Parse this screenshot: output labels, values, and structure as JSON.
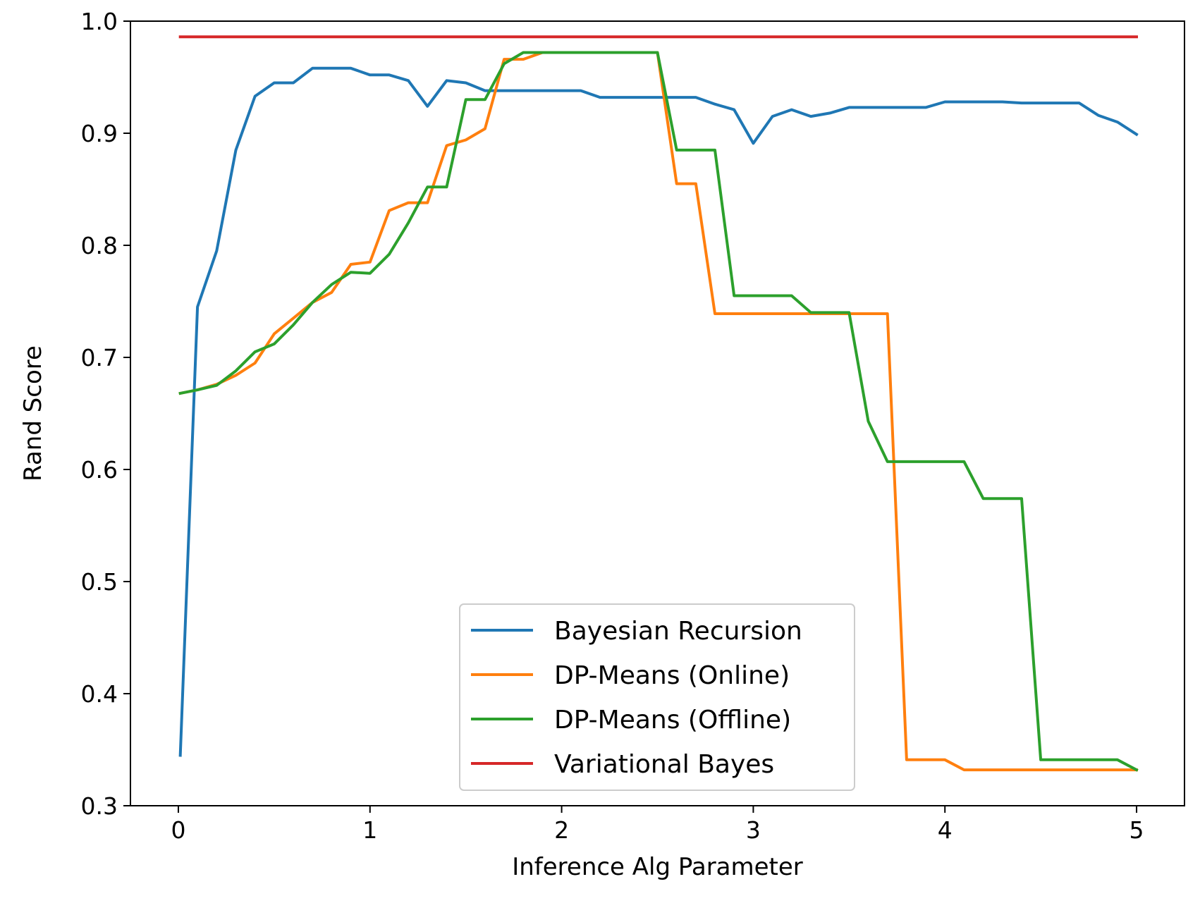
{
  "chart_data": {
    "type": "line",
    "title": "",
    "xlabel": "Inference Alg Parameter",
    "ylabel": "Rand Score",
    "xlim": [
      -0.25,
      5.25
    ],
    "ylim": [
      0.3,
      1.0
    ],
    "xticks": [
      0,
      1,
      2,
      3,
      4,
      5
    ],
    "xtick_labels": [
      "0",
      "1",
      "2",
      "3",
      "4",
      "5"
    ],
    "yticks": [
      0.3,
      0.4,
      0.5,
      0.6,
      0.7,
      0.8,
      0.9,
      1.0
    ],
    "ytick_labels": [
      "0.3",
      "0.4",
      "0.5",
      "0.6",
      "0.7",
      "0.8",
      "0.9",
      "1.0"
    ],
    "grid": false,
    "legend_position": "lower-center",
    "x": [
      0.01,
      0.1,
      0.2,
      0.3,
      0.4,
      0.5,
      0.6,
      0.7,
      0.8,
      0.9,
      1.0,
      1.1,
      1.2,
      1.3,
      1.4,
      1.5,
      1.6,
      1.7,
      1.8,
      1.9,
      2.0,
      2.1,
      2.2,
      2.3,
      2.4,
      2.5,
      2.6,
      2.7,
      2.8,
      2.9,
      3.0,
      3.1,
      3.2,
      3.3,
      3.4,
      3.5,
      3.6,
      3.7,
      3.8,
      3.9,
      4.0,
      4.1,
      4.2,
      4.3,
      4.4,
      4.5,
      4.6,
      4.7,
      4.8,
      4.9,
      5.0
    ],
    "series": [
      {
        "name": "Bayesian Recursion",
        "color": "#1f77b4",
        "values": [
          0.345,
          0.745,
          0.795,
          0.885,
          0.933,
          0.945,
          0.945,
          0.958,
          0.958,
          0.958,
          0.952,
          0.952,
          0.947,
          0.924,
          0.947,
          0.945,
          0.938,
          0.938,
          0.938,
          0.938,
          0.938,
          0.938,
          0.932,
          0.932,
          0.932,
          0.932,
          0.932,
          0.932,
          0.926,
          0.921,
          0.891,
          0.915,
          0.921,
          0.915,
          0.918,
          0.923,
          0.923,
          0.923,
          0.923,
          0.923,
          0.928,
          0.928,
          0.928,
          0.928,
          0.927,
          0.927,
          0.927,
          0.927,
          0.916,
          0.91,
          0.899
        ]
      },
      {
        "name": "DP-Means (Online)",
        "color": "#ff7f0e",
        "values": [
          0.668,
          0.671,
          0.676,
          0.684,
          0.695,
          0.721,
          0.735,
          0.749,
          0.758,
          0.783,
          0.785,
          0.831,
          0.838,
          0.838,
          0.889,
          0.894,
          0.904,
          0.966,
          0.966,
          0.972,
          0.972,
          0.972,
          0.972,
          0.972,
          0.972,
          0.972,
          0.855,
          0.855,
          0.739,
          0.739,
          0.739,
          0.739,
          0.739,
          0.739,
          0.739,
          0.739,
          0.739,
          0.739,
          0.341,
          0.341,
          0.341,
          0.332,
          0.332,
          0.332,
          0.332,
          0.332,
          0.332,
          0.332,
          0.332,
          0.332,
          0.332
        ]
      },
      {
        "name": "DP-Means (Offline)",
        "color": "#2ca02c",
        "values": [
          0.668,
          0.671,
          0.675,
          0.688,
          0.705,
          0.712,
          0.729,
          0.749,
          0.765,
          0.776,
          0.775,
          0.792,
          0.82,
          0.852,
          0.852,
          0.93,
          0.93,
          0.962,
          0.972,
          0.972,
          0.972,
          0.972,
          0.972,
          0.972,
          0.972,
          0.972,
          0.885,
          0.885,
          0.885,
          0.755,
          0.755,
          0.755,
          0.755,
          0.74,
          0.74,
          0.74,
          0.643,
          0.607,
          0.607,
          0.607,
          0.607,
          0.607,
          0.574,
          0.574,
          0.574,
          0.341,
          0.341,
          0.341,
          0.341,
          0.341,
          0.332
        ]
      },
      {
        "name": "Variational Bayes",
        "color": "#d62728",
        "values": [
          0.986,
          0.986,
          0.986,
          0.986,
          0.986,
          0.986,
          0.986,
          0.986,
          0.986,
          0.986,
          0.986,
          0.986,
          0.986,
          0.986,
          0.986,
          0.986,
          0.986,
          0.986,
          0.986,
          0.986,
          0.986,
          0.986,
          0.986,
          0.986,
          0.986,
          0.986,
          0.986,
          0.986,
          0.986,
          0.986,
          0.986,
          0.986,
          0.986,
          0.986,
          0.986,
          0.986,
          0.986,
          0.986,
          0.986,
          0.986,
          0.986,
          0.986,
          0.986,
          0.986,
          0.986,
          0.986,
          0.986,
          0.986,
          0.986,
          0.986,
          0.986
        ]
      }
    ]
  }
}
